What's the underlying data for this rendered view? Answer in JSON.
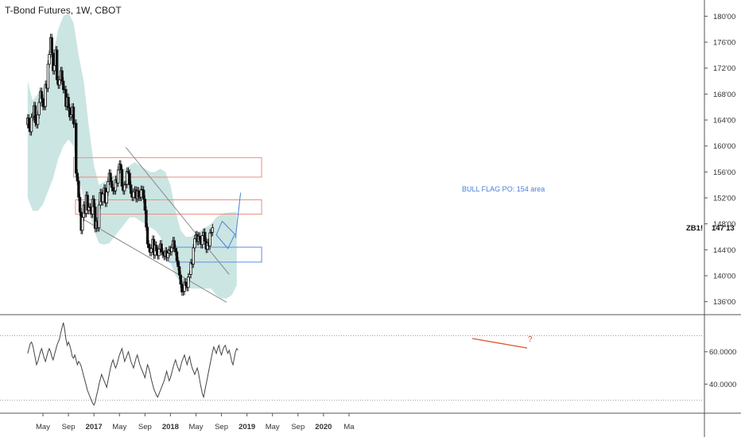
{
  "title": "T-Bond Futures, 1W, CBOT",
  "symbol_label": "ZB1!",
  "current_price_label": "147'13",
  "annotation_flag": "BULL FLAG PO: 154 area",
  "annotation_question": "?",
  "colors": {
    "band_fill": "#c5e2df",
    "candle": "#111111",
    "trendline": "#8a8a8a",
    "resistance_box": "#e8907f",
    "support_box": "#5b8fe0",
    "flag": "#4a7fd8",
    "rsi_line": "#444444",
    "rsi_divergence": "#e0502e",
    "axis_text": "#333333"
  },
  "chart_data": [
    {
      "type": "candlestick",
      "title": "T-Bond Futures, 1W, CBOT",
      "price_ticks": [
        "180'00",
        "176'00",
        "172'00",
        "168'00",
        "164'00",
        "160'00",
        "156'00",
        "152'00",
        "148'00",
        "144'00",
        "140'00",
        "136'00"
      ],
      "price_tick_values": [
        180,
        176,
        172,
        168,
        164,
        160,
        156,
        152,
        148,
        144,
        140,
        136
      ],
      "ylim": [
        134.0,
        182.5
      ],
      "time_labels": [
        "May",
        "Sep",
        "2017",
        "May",
        "Sep",
        "2018",
        "May",
        "Sep",
        "2019",
        "May",
        "Sep",
        "2020",
        "Ma"
      ],
      "time_label_t": [
        0,
        4,
        8,
        12,
        16,
        20,
        24,
        28,
        32,
        36,
        40,
        44,
        48
      ],
      "last_price": 147.4,
      "zones": [
        {
          "kind": "resistance",
          "t0": 4.8,
          "t1": 34.3,
          "low": 155.2,
          "high": 158.2
        },
        {
          "kind": "resistance",
          "t0": 5.1,
          "t1": 34.3,
          "low": 149.5,
          "high": 151.7
        },
        {
          "kind": "support",
          "t0": 19.8,
          "t1": 34.3,
          "low": 142.1,
          "high": 144.4
        }
      ],
      "trendlines": [
        {
          "t0": 13.0,
          "p0": 159.8,
          "t1": 29.2,
          "p1": 140.2
        },
        {
          "t0": 5.8,
          "p0": 149.0,
          "t1": 28.8,
          "p1": 135.9
        }
      ],
      "bull_flag": [
        [
          28.1,
          148.4
        ],
        [
          30.1,
          146.4
        ],
        [
          29.0,
          144.2
        ],
        [
          27.2,
          146.3
        ],
        [
          28.1,
          148.4
        ]
      ],
      "projection": [
        [
          30.2,
          145.8
        ],
        [
          31.0,
          152.8
        ]
      ],
      "bollinger": {
        "t": [
          -2.4,
          -1.6,
          -0.8,
          0,
          0.8,
          1.6,
          2.4,
          3.2,
          4.0,
          4.8,
          5.6,
          6.4,
          7.2,
          8.0,
          8.8,
          9.6,
          10.4,
          11.2,
          12.0,
          12.8,
          13.6,
          14.4,
          15.2,
          16.0,
          16.8,
          17.6,
          18.4,
          19.2,
          20.0,
          20.8,
          21.6,
          22.4,
          23.2,
          24.0,
          24.8,
          25.6,
          26.4,
          27.2,
          28.0,
          28.8,
          29.6,
          30.4
        ],
        "upper": [
          170,
          167,
          168,
          169,
          170,
          174,
          178,
          180,
          180.5,
          179,
          174,
          170,
          163,
          157,
          154,
          154.5,
          155,
          155.5,
          156,
          156.5,
          157,
          157.5,
          157,
          156.5,
          156,
          156,
          156.5,
          156,
          154,
          150,
          147,
          146,
          146,
          146.5,
          147,
          147.5,
          148,
          149,
          149.5,
          149.7,
          149.8,
          149.8
        ],
        "lower": [
          152,
          150,
          150,
          151,
          153,
          155,
          158,
          160,
          161,
          160,
          155,
          152,
          150,
          147,
          145,
          144.8,
          145,
          146,
          147,
          148,
          149,
          149,
          148.5,
          148,
          147.5,
          147,
          146,
          144,
          142,
          140,
          139,
          138.5,
          138,
          138,
          138,
          138,
          138,
          137,
          136.5,
          136.5,
          137,
          138.5
        ]
      },
      "candles": [
        [
          -2.4,
          163.3,
          164.3
        ],
        [
          -2.2,
          164.3,
          162.8
        ],
        [
          -2.0,
          162.8,
          162.2
        ],
        [
          -1.8,
          162.2,
          164.4
        ],
        [
          -1.6,
          164.4,
          164.6
        ],
        [
          -1.4,
          164.6,
          166.2
        ],
        [
          -1.2,
          166.2,
          163.6
        ],
        [
          -1.0,
          163.6,
          163.3
        ],
        [
          -0.8,
          163.3,
          164.8
        ],
        [
          -0.6,
          164.8,
          166.7
        ],
        [
          -0.4,
          166.7,
          168.4
        ],
        [
          -0.2,
          168.4,
          167.3
        ],
        [
          0.0,
          167.3,
          166.1
        ],
        [
          0.2,
          166.1,
          166.1
        ],
        [
          0.4,
          166.1,
          169.5
        ],
        [
          0.6,
          169.5,
          168.9
        ],
        [
          0.8,
          168.9,
          172.6
        ],
        [
          1.0,
          172.6,
          174.1
        ],
        [
          1.2,
          174.1,
          176.7
        ],
        [
          1.4,
          176.7,
          174.3
        ],
        [
          1.6,
          174.3,
          171.6
        ],
        [
          1.8,
          171.6,
          172.4
        ],
        [
          2.0,
          172.4,
          174.8
        ],
        [
          2.2,
          174.8,
          170.2
        ],
        [
          2.4,
          170.2,
          169.4
        ],
        [
          2.6,
          169.4,
          170.2
        ],
        [
          2.8,
          170.2,
          171.6
        ],
        [
          3.0,
          171.6,
          170.0
        ],
        [
          3.2,
          170.0,
          168.7
        ],
        [
          3.4,
          168.7,
          168.7
        ],
        [
          3.6,
          168.7,
          166.1
        ],
        [
          3.8,
          166.1,
          167.5
        ],
        [
          4.0,
          167.5,
          165.9
        ],
        [
          4.2,
          165.9,
          164.5
        ],
        [
          4.4,
          164.5,
          164.8
        ],
        [
          4.6,
          164.8,
          166.0
        ],
        [
          4.8,
          166.0,
          163.4
        ],
        [
          5.0,
          163.4,
          163.5
        ],
        [
          5.2,
          163.5,
          155.8
        ],
        [
          5.4,
          155.8,
          154.6
        ],
        [
          5.6,
          154.6,
          152.1
        ],
        [
          5.8,
          152.1,
          149.8
        ],
        [
          6.0,
          149.8,
          147.0
        ],
        [
          6.2,
          147.0,
          149.0
        ],
        [
          6.4,
          149.0,
          150.9
        ],
        [
          6.6,
          150.9,
          149.6
        ],
        [
          6.8,
          149.6,
          152.4
        ],
        [
          7.0,
          152.4,
          150.1
        ],
        [
          7.2,
          150.1,
          150.6
        ],
        [
          7.4,
          150.6,
          150.5
        ],
        [
          7.6,
          150.5,
          149.5
        ],
        [
          7.8,
          149.5,
          151.8
        ],
        [
          8.0,
          151.8,
          150.6
        ],
        [
          8.2,
          150.6,
          147.3
        ],
        [
          8.4,
          147.3,
          148.4
        ],
        [
          8.6,
          148.4,
          147.4
        ],
        [
          8.8,
          147.4,
          150.9
        ],
        [
          9.0,
          150.9,
          152.8
        ],
        [
          9.2,
          152.8,
          151.4
        ],
        [
          9.4,
          151.4,
          152.6
        ],
        [
          9.6,
          152.6,
          153.5
        ],
        [
          9.8,
          153.5,
          151.2
        ],
        [
          10.0,
          151.2,
          152.9
        ],
        [
          10.2,
          152.9,
          154.5
        ],
        [
          10.4,
          154.5,
          155.8
        ],
        [
          10.6,
          155.8,
          154.6
        ],
        [
          10.8,
          154.6,
          153.6
        ],
        [
          11.0,
          153.6,
          153.1
        ],
        [
          11.2,
          153.1,
          153.1
        ],
        [
          11.4,
          153.1,
          154.8
        ],
        [
          11.6,
          154.8,
          154.3
        ],
        [
          11.8,
          154.3,
          156.3
        ],
        [
          12.0,
          156.3,
          157.2
        ],
        [
          12.2,
          157.2,
          156.4
        ],
        [
          12.4,
          156.4,
          153.8
        ],
        [
          12.6,
          153.8,
          153.1
        ],
        [
          12.8,
          153.1,
          154.0
        ],
        [
          13.0,
          154.0,
          154.1
        ],
        [
          13.2,
          154.1,
          156.1
        ],
        [
          13.4,
          156.1,
          155.8
        ],
        [
          13.6,
          155.8,
          154.0
        ],
        [
          13.8,
          154.0,
          152.7
        ],
        [
          14.0,
          152.7,
          152.1
        ],
        [
          14.2,
          152.1,
          152.9
        ],
        [
          14.4,
          152.9,
          153.2
        ],
        [
          14.6,
          153.2,
          151.9
        ],
        [
          14.8,
          151.9,
          153.1
        ],
        [
          15.0,
          153.1,
          152.1
        ],
        [
          15.2,
          152.1,
          152.1
        ],
        [
          15.4,
          152.1,
          153.3
        ],
        [
          15.6,
          153.3,
          153.2
        ],
        [
          15.8,
          153.2,
          151.8
        ],
        [
          16.0,
          151.8,
          150.1
        ],
        [
          16.2,
          150.1,
          147.5
        ],
        [
          16.4,
          147.5,
          144.9
        ],
        [
          16.6,
          144.9,
          144.3
        ],
        [
          16.8,
          144.3,
          143.6
        ],
        [
          17.0,
          143.6,
          144.2
        ],
        [
          17.2,
          144.2,
          145.6
        ],
        [
          17.4,
          145.6,
          143.2
        ],
        [
          17.6,
          143.2,
          144.7
        ],
        [
          17.8,
          144.7,
          143.8
        ],
        [
          18.0,
          143.8,
          143.1
        ],
        [
          18.2,
          143.1,
          144.1
        ],
        [
          18.4,
          144.1,
          144.9
        ],
        [
          18.6,
          144.9,
          143.7
        ],
        [
          18.8,
          143.7,
          143.3
        ],
        [
          19.0,
          143.3,
          143.0
        ],
        [
          19.2,
          143.0,
          143.8
        ],
        [
          19.4,
          143.8,
          142.8
        ],
        [
          19.6,
          142.8,
          143.5
        ],
        [
          19.8,
          143.5,
          144.0
        ],
        [
          20.0,
          144.0,
          143.7
        ],
        [
          20.2,
          143.7,
          144.3
        ],
        [
          20.4,
          144.3,
          145.4
        ],
        [
          20.6,
          145.4,
          144.2
        ],
        [
          20.8,
          144.2,
          143.7
        ],
        [
          21.0,
          143.7,
          142.3
        ],
        [
          21.2,
          142.3,
          141.4
        ],
        [
          21.4,
          141.4,
          140.1
        ],
        [
          21.6,
          140.1,
          138.7
        ],
        [
          21.8,
          138.7,
          137.5
        ],
        [
          22.0,
          137.5,
          137.6
        ],
        [
          22.2,
          137.6,
          139.0
        ],
        [
          22.4,
          139.0,
          138.5
        ],
        [
          22.6,
          138.5,
          138.2
        ],
        [
          22.8,
          138.2,
          139.8
        ],
        [
          23.0,
          139.8,
          140.2
        ],
        [
          23.2,
          140.2,
          142.0
        ],
        [
          23.4,
          142.0,
          141.8
        ],
        [
          23.6,
          141.8,
          144.3
        ],
        [
          23.8,
          144.3,
          145.7
        ],
        [
          24.0,
          145.7,
          146.3
        ],
        [
          24.2,
          146.3,
          145.3
        ],
        [
          24.4,
          145.3,
          146.1
        ],
        [
          24.6,
          146.1,
          145.5
        ],
        [
          24.8,
          145.5,
          144.8
        ],
        [
          25.0,
          144.8,
          146.2
        ],
        [
          25.2,
          146.2,
          146.7
        ],
        [
          25.4,
          146.7,
          145.3
        ],
        [
          25.6,
          145.3,
          144.1
        ],
        [
          25.8,
          144.1,
          145.1
        ],
        [
          26.0,
          145.1,
          144.6
        ],
        [
          26.2,
          144.6,
          146.6
        ],
        [
          26.4,
          146.6,
          146.7
        ],
        [
          26.6,
          146.7,
          147.4
        ]
      ]
    },
    {
      "type": "line",
      "title": "",
      "y_ticks": [
        "60.0000",
        "40.0000"
      ],
      "y_tick_values": [
        60,
        40
      ],
      "ylim": [
        22,
        82
      ],
      "levels": [
        70,
        30
      ],
      "t_start": -2.4,
      "t_step": 0.2,
      "values": [
        59,
        62,
        65,
        66,
        64,
        60,
        56,
        52,
        54,
        57,
        60,
        62,
        59,
        56,
        54,
        57,
        60,
        62,
        60,
        57,
        55,
        58,
        61,
        64,
        66,
        68,
        72,
        75,
        78,
        74,
        68,
        64,
        66,
        64,
        61,
        57,
        56,
        58,
        55,
        52,
        54,
        53,
        51,
        48,
        45,
        42,
        39,
        36,
        34,
        32,
        30,
        28,
        27,
        29,
        33,
        36,
        40,
        43,
        46,
        44,
        42,
        40,
        38,
        42,
        46,
        50,
        53,
        55,
        52,
        50,
        52,
        55,
        58,
        60,
        62,
        58,
        54,
        56,
        58,
        60,
        57,
        54,
        52,
        50,
        53,
        56,
        58,
        55,
        52,
        50,
        48,
        46,
        44,
        48,
        52,
        50,
        47,
        43,
        40,
        37,
        35,
        33,
        32,
        34,
        36,
        38,
        40,
        42,
        45,
        48,
        45,
        42,
        44,
        47,
        50,
        53,
        55,
        52,
        50,
        48,
        51,
        54,
        56,
        58,
        55,
        52,
        55,
        57,
        53,
        50,
        48,
        46,
        48,
        50,
        47,
        42,
        38,
        34,
        32,
        36,
        40,
        44,
        48,
        52,
        56,
        60,
        63,
        61,
        59,
        62,
        64,
        60,
        58,
        61,
        63,
        64,
        61,
        59,
        61,
        58,
        54,
        52,
        56,
        60,
        62,
        61
      ]
    }
  ]
}
